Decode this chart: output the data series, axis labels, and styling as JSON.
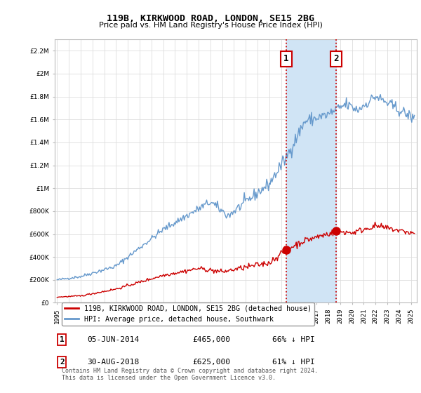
{
  "title": "119B, KIRKWOOD ROAD, LONDON, SE15 2BG",
  "subtitle": "Price paid vs. HM Land Registry's House Price Index (HPI)",
  "legend_line1": "119B, KIRKWOOD ROAD, LONDON, SE15 2BG (detached house)",
  "legend_line2": "HPI: Average price, detached house, Southwark",
  "footnote": "Contains HM Land Registry data © Crown copyright and database right 2024.\nThis data is licensed under the Open Government Licence v3.0.",
  "annotation1": {
    "label": "1",
    "date": "05-JUN-2014",
    "price": "£465,000",
    "hpi": "66% ↓ HPI"
  },
  "annotation2": {
    "label": "2",
    "date": "30-AUG-2018",
    "price": "£625,000",
    "hpi": "61% ↓ HPI"
  },
  "sale1_x": 2014.43,
  "sale1_y": 465000,
  "sale2_x": 2018.66,
  "sale2_y": 625000,
  "red_color": "#cc0000",
  "blue_color": "#6699cc",
  "shade_color": "#d0e4f5",
  "ylim": [
    0,
    2300000
  ],
  "xlim": [
    1994.8,
    2025.5
  ]
}
